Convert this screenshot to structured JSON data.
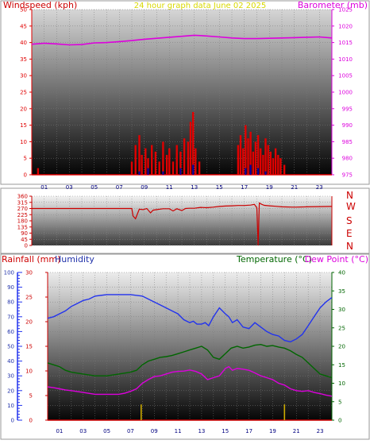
{
  "header": {
    "left_title": "Windspeed (kph)",
    "center_title": "24 hour graph data   June 02 2025",
    "right_title": "Barometer (mb)"
  },
  "colors": {
    "wind": "#e00000",
    "gust_blue": "#0000aa",
    "barometer": "#dd00dd",
    "direction": "#cc0000",
    "humidity": "#2233ee",
    "temperature": "#006600",
    "dewpoint": "#dd00dd",
    "rain_axis": "#cc0000",
    "rain_bar": "#ccaa00",
    "title_yellow": "#d8d800",
    "axis_green": "#006600"
  },
  "chart_data": [
    {
      "id": "wind_baro",
      "type": "bar",
      "xlabel": "",
      "x_ticks": [
        "01",
        "03",
        "05",
        "07",
        "09",
        "11",
        "13",
        "15",
        "17",
        "19",
        "21",
        "23"
      ],
      "left_axis": {
        "label": "Windspeed (kph)",
        "ylim": [
          0,
          50
        ],
        "ticks": [
          0,
          5,
          10,
          15,
          20,
          25,
          30,
          35,
          40,
          45,
          50
        ]
      },
      "right_axis": {
        "label": "Barometer (mb)",
        "ylim": [
          975,
          1025
        ],
        "ticks": [
          975,
          980,
          985,
          990,
          995,
          1000,
          1005,
          1010,
          1015,
          1020,
          1025
        ]
      },
      "series": [
        {
          "kind": "barometer_line",
          "x": [
            0,
            1,
            2,
            3,
            4,
            5,
            6,
            7,
            8,
            9,
            10,
            11,
            12,
            13,
            14,
            15,
            16,
            17,
            18,
            19,
            20,
            21,
            22,
            23,
            24
          ],
          "values": [
            1014.5,
            1014.8,
            1014.6,
            1014.3,
            1014.4,
            1014.9,
            1015.0,
            1015.3,
            1015.6,
            1016.0,
            1016.3,
            1016.6,
            1016.9,
            1017.2,
            1017.0,
            1016.7,
            1016.4,
            1016.2,
            1016.2,
            1016.3,
            1016.4,
            1016.5,
            1016.6,
            1016.7,
            1016.4
          ]
        },
        {
          "kind": "wind_bars",
          "x": [
            0.5,
            8.0,
            8.3,
            8.6,
            8.8,
            9.1,
            9.3,
            9.6,
            9.9,
            10.2,
            10.5,
            10.8,
            11.0,
            11.3,
            11.6,
            11.9,
            12.2,
            12.5,
            12.7,
            12.9,
            13.1,
            13.4,
            16.5,
            16.7,
            16.9,
            17.1,
            17.3,
            17.5,
            17.7,
            17.9,
            18.1,
            18.3,
            18.5,
            18.7,
            18.9,
            19.1,
            19.3,
            19.5,
            19.7,
            19.9,
            20.2
          ],
          "values": [
            2,
            4,
            9,
            12,
            6,
            8,
            5,
            9,
            7,
            4,
            10,
            6,
            8,
            4,
            9,
            7,
            11,
            10,
            16,
            19,
            8,
            4,
            9,
            12,
            8,
            15,
            11,
            13,
            7,
            10,
            12,
            8,
            6,
            11,
            9,
            7,
            5,
            8,
            6,
            5,
            3
          ]
        },
        {
          "kind": "avg_wind_bars",
          "x": [
            8.6,
            9.3,
            10.5,
            11.9,
            12.9,
            17.1,
            17.5,
            18.1,
            18.7
          ],
          "values": [
            1,
            2,
            1,
            2,
            3,
            2,
            3,
            2,
            1
          ]
        }
      ]
    },
    {
      "id": "direction",
      "type": "line",
      "xlabel": "",
      "left_axis": {
        "ylim": [
          0,
          360
        ],
        "ticks": [
          0,
          45,
          90,
          135,
          180,
          225,
          270,
          315,
          360
        ]
      },
      "right_labels": [
        "N",
        "W",
        "S",
        "E",
        "N"
      ],
      "series": [
        {
          "kind": "direction_line",
          "x": [
            0,
            1,
            2,
            3,
            4,
            5,
            6,
            7,
            8,
            8.1,
            8.3,
            8.6,
            8.9,
            9.2,
            9.5,
            9.7,
            10,
            10.5,
            11,
            11.3,
            11.6,
            12,
            12.3,
            12.6,
            13,
            13.5,
            14,
            14.5,
            15,
            15.5,
            16,
            16.5,
            17,
            17.5,
            17.8,
            18,
            18.1,
            18.2,
            18.4,
            18.6,
            19,
            19.5,
            20,
            21,
            22,
            23,
            24
          ],
          "values": [
            270,
            270,
            270,
            270,
            270,
            270,
            270,
            270,
            270,
            215,
            195,
            265,
            262,
            270,
            238,
            258,
            262,
            268,
            268,
            252,
            268,
            255,
            270,
            272,
            272,
            278,
            276,
            280,
            285,
            288,
            290,
            292,
            292,
            295,
            300,
            275,
            0,
            310,
            300,
            293,
            290,
            286,
            282,
            280,
            282,
            284,
            285
          ]
        }
      ]
    },
    {
      "id": "humidity_temp",
      "type": "line",
      "xlabel": "",
      "x_ticks": [
        "01",
        "03",
        "05",
        "07",
        "09",
        "11",
        "13",
        "15",
        "17",
        "19",
        "21",
        "23"
      ],
      "axes": [
        {
          "label": "Humidity",
          "ylim": [
            0,
            100
          ],
          "ticks": [
            0,
            10,
            20,
            30,
            40,
            50,
            60,
            70,
            80,
            90,
            100
          ]
        },
        {
          "label": "Rainfall (mm)",
          "ylim": [
            0,
            30
          ],
          "ticks": [
            0,
            5,
            10,
            15,
            20,
            25,
            30
          ]
        },
        {
          "label": "Temperature (°C)",
          "ylim": [
            0,
            40
          ],
          "ticks": [
            0,
            5,
            10,
            15,
            20,
            25,
            30,
            35,
            40
          ]
        },
        {
          "label": "Dew Point (°C)"
        }
      ],
      "series": [
        {
          "name": "Humidity",
          "x": [
            0,
            0.5,
            1,
            1.5,
            2,
            2.5,
            3,
            3.5,
            4,
            5,
            6,
            7,
            8,
            9,
            9.5,
            10,
            10.5,
            11,
            11.5,
            12,
            12.3,
            12.6,
            13,
            13.3,
            13.6,
            14,
            14.5,
            15,
            15.3,
            15.6,
            16,
            16.5,
            17,
            17.5,
            18,
            18.5,
            19,
            19.5,
            20,
            20.5,
            21,
            21.5,
            22,
            22.5,
            23,
            23.5,
            24
          ],
          "values": [
            69,
            70,
            72,
            74,
            77,
            79,
            81,
            82,
            84,
            85,
            85,
            85,
            84,
            80,
            78,
            76,
            74,
            72,
            68,
            66,
            67,
            65,
            65,
            66,
            64,
            70,
            76,
            72,
            70,
            66,
            68,
            63,
            62,
            66,
            63,
            60,
            58,
            57,
            54,
            53,
            55,
            58,
            64,
            70,
            76,
            80,
            83
          ]
        },
        {
          "name": "Temperature",
          "x": [
            0,
            0.5,
            1,
            1.5,
            2,
            3,
            4,
            5,
            6,
            7,
            7.5,
            8,
            8.5,
            9,
            9.5,
            10,
            10.5,
            11,
            11.5,
            12,
            12.5,
            13,
            13.5,
            14,
            14.5,
            15,
            15.5,
            16,
            16.5,
            17,
            17.5,
            18,
            18.5,
            19,
            19.5,
            20,
            20.5,
            21,
            21.5,
            22,
            22.5,
            23,
            23.5,
            24
          ],
          "values": [
            15.5,
            15,
            14.5,
            13.5,
            13,
            12.5,
            12,
            12,
            12.5,
            13,
            13.5,
            15,
            16,
            16.5,
            17,
            17.2,
            17.5,
            18,
            18.5,
            19,
            19.5,
            20,
            19,
            17,
            16.5,
            18,
            19.5,
            20,
            19.5,
            19.8,
            20.3,
            20.5,
            20,
            20.2,
            19.8,
            19.5,
            18.8,
            17.8,
            17,
            15.5,
            14,
            12.5,
            12,
            11.5
          ]
        },
        {
          "name": "Dew Point",
          "x": [
            0,
            0.5,
            1,
            1.5,
            2,
            3,
            4,
            5,
            6,
            6.5,
            7,
            7.5,
            8,
            8.5,
            9,
            9.5,
            10,
            10.5,
            11,
            11.5,
            12,
            12.5,
            13,
            13.5,
            14,
            14.5,
            15,
            15.3,
            15.6,
            16,
            16.5,
            17,
            17.5,
            18,
            18.5,
            19,
            19.5,
            20,
            20.5,
            21,
            21.5,
            22,
            22.5,
            23,
            23.5,
            24
          ],
          "values": [
            9,
            8.8,
            8.5,
            8.2,
            8,
            7.5,
            7,
            7,
            7,
            7.3,
            7.8,
            8.5,
            10,
            11,
            11.8,
            12,
            12.5,
            13,
            13.2,
            13.3,
            13.6,
            13.2,
            12.5,
            11,
            11.5,
            12,
            14,
            14.5,
            13.5,
            14,
            13.8,
            13.5,
            12.8,
            12,
            11.5,
            11,
            10,
            9.5,
            8.5,
            8,
            7.8,
            8,
            7.5,
            7.2,
            6.8,
            6.5
          ]
        },
        {
          "kind": "rain_bars",
          "x": [
            7.9,
            20.0
          ],
          "values": [
            3.2,
            3.2
          ]
        }
      ]
    }
  ]
}
